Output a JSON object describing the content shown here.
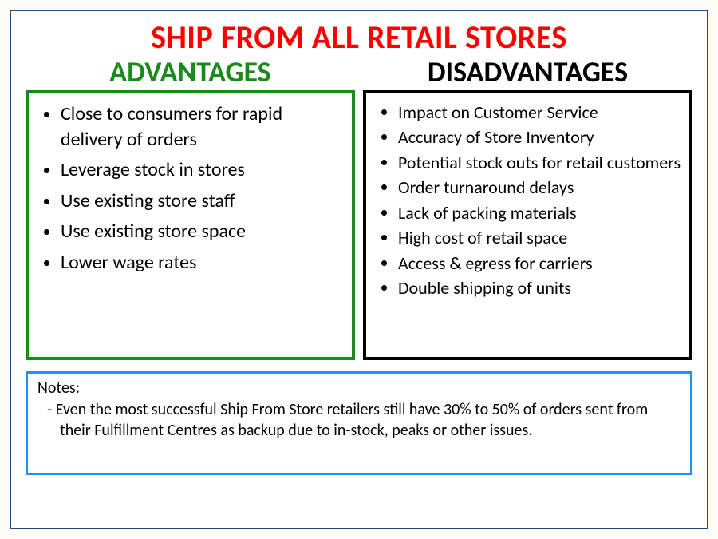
{
  "title": {
    "text": "SHIP FROM ALL RETAIL STORES",
    "color": "#ff0000"
  },
  "advantages": {
    "heading": "ADVANTAGES",
    "heading_color": "#1a8a1a",
    "border_color": "#1a8a1a",
    "items": [
      "Close to consumers for rapid delivery of orders",
      "Leverage stock in stores",
      "Use existing store staff",
      "Use existing store space",
      "Lower wage rates"
    ]
  },
  "disadvantages": {
    "heading": "DISADVANTAGES",
    "heading_color": "#000000",
    "border_color": "#000000",
    "items": [
      "Impact on Customer Service",
      "Accuracy of Store Inventory",
      "Potential stock outs for retail customers",
      "Order turnaround delays",
      "Lack of packing materials",
      "High cost of retail space",
      "Access & egress for carriers",
      "Double shipping of units"
    ]
  },
  "notes": {
    "label": "Notes:",
    "border_color": "#1f8fff",
    "items": [
      "Even the most successful Ship From Store retailers still have 30% to 50% of orders sent from their Fulfillment Centres as backup due to in-stock, peaks or other issues."
    ]
  },
  "background_color": "#ffffff",
  "outer_border_color": "#1f4e79"
}
